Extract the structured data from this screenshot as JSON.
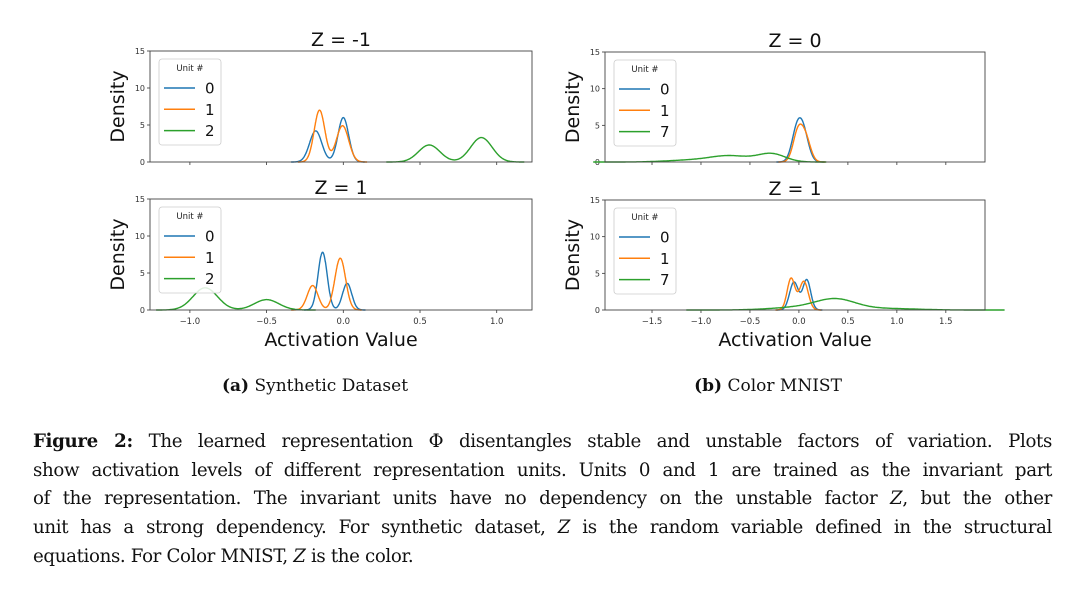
{
  "colors": {
    "unit_a": "#1f77b4",
    "unit_b": "#ff7f0e",
    "unit_c": "#2ca02c"
  },
  "chart_data": [
    {
      "type": "line",
      "panel": "a-top",
      "title": "Z = -1",
      "ylabel": "Density",
      "xlabel": "",
      "ylim": [
        0,
        15
      ],
      "xlim": [
        -1.26,
        1.23
      ],
      "yticks": [
        "0",
        "5",
        "10",
        "15"
      ],
      "xticks": [],
      "legend_title": "Unit #",
      "legend_placement": "upper-left",
      "series": [
        {
          "name": "0",
          "components": [
            [
              -0.18,
              4.2,
              0.04
            ],
            [
              0.0,
              6.0,
              0.035
            ]
          ]
        },
        {
          "name": "1",
          "components": [
            [
              -0.155,
              7.0,
              0.035
            ],
            [
              -0.005,
              4.9,
              0.04
            ]
          ]
        },
        {
          "name": "2",
          "components": [
            [
              0.56,
              2.3,
              0.07
            ],
            [
              0.9,
              3.3,
              0.07
            ]
          ]
        }
      ]
    },
    {
      "type": "line",
      "panel": "a-bottom",
      "title": "Z = 1",
      "ylabel": "Density",
      "xlabel": "Activation Value",
      "ylim": [
        0,
        15
      ],
      "xlim": [
        -1.26,
        1.23
      ],
      "yticks": [
        "0",
        "5",
        "10",
        "15"
      ],
      "xticks": [
        "−1.0",
        "−0.5",
        "0.0",
        "0.5",
        "1.0"
      ],
      "xtick_values": [
        -1.0,
        -0.5,
        0.0,
        0.5,
        1.0
      ],
      "legend_title": "Unit #",
      "legend_placement": "upper-left",
      "series": [
        {
          "name": "0",
          "components": [
            [
              -0.135,
              7.8,
              0.03
            ],
            [
              0.025,
              3.6,
              0.03
            ]
          ]
        },
        {
          "name": "1",
          "components": [
            [
              -0.2,
              3.3,
              0.035
            ],
            [
              -0.02,
              7.0,
              0.035
            ]
          ]
        },
        {
          "name": "2",
          "components": [
            [
              -0.9,
              3.0,
              0.08
            ],
            [
              -0.5,
              1.4,
              0.08
            ]
          ]
        }
      ]
    },
    {
      "type": "line",
      "panel": "b-top",
      "title": "Z = 0",
      "ylabel": "Density",
      "xlabel": "",
      "ylim": [
        0,
        15
      ],
      "xlim": [
        -1.98,
        1.9
      ],
      "yticks": [
        "0",
        "5",
        "10",
        "15"
      ],
      "xticks": [],
      "legend_title": "Unit #",
      "legend_placement": "upper-left",
      "series": [
        {
          "name": "0",
          "components": [
            [
              -0.03,
              3.2,
              0.05
            ],
            [
              0.04,
              4.3,
              0.055
            ]
          ]
        },
        {
          "name": "1",
          "components": [
            [
              -0.01,
              4.0,
              0.05
            ],
            [
              0.07,
              3.0,
              0.05
            ]
          ]
        },
        {
          "name": "7",
          "components": [
            [
              -0.28,
              1.1,
              0.14
            ],
            [
              -0.7,
              0.8,
              0.2
            ],
            [
              -1.1,
              0.25,
              0.25
            ]
          ]
        }
      ]
    },
    {
      "type": "line",
      "panel": "b-bottom",
      "title": "Z = 1",
      "ylabel": "Density",
      "xlabel": "Activation Value",
      "ylim": [
        0,
        15
      ],
      "xlim": [
        -1.98,
        1.9
      ],
      "yticks": [
        "0",
        "5",
        "10",
        "15"
      ],
      "xticks": [
        "−1.5",
        "−1.0",
        "−0.5",
        "0.0",
        "0.5",
        "1.0",
        "1.5"
      ],
      "xtick_values": [
        -1.5,
        -1.0,
        -0.5,
        0.0,
        0.5,
        1.0,
        1.5
      ],
      "legend_title": "Unit #",
      "legend_placement": "upper-left",
      "series": [
        {
          "name": "0",
          "components": [
            [
              -0.05,
              3.8,
              0.045
            ],
            [
              0.08,
              4.1,
              0.04
            ]
          ]
        },
        {
          "name": "1",
          "components": [
            [
              -0.08,
              4.3,
              0.04
            ],
            [
              0.05,
              3.9,
              0.045
            ]
          ]
        },
        {
          "name": "7",
          "components": [
            [
              0.38,
              1.3,
              0.2
            ],
            [
              0.05,
              0.4,
              0.3
            ],
            [
              0.9,
              0.2,
              0.3
            ]
          ]
        }
      ]
    }
  ],
  "subcaptions": {
    "a_label": "(a)",
    "a_text": "Synthetic Dataset",
    "b_label": "(b)",
    "b_text": "Color MNIST"
  },
  "caption": {
    "label": "Figure 2:",
    "l1": "The learned representation Φ disentangles stable and unstable factors of variation. Plots",
    "l2": "show activation levels of different representation units. Units 0 and 1 are trained as the invariant part",
    "l3a": "of the representation. The invariant units have no dependency on the unstable factor ",
    "z": "Z",
    "l3b": ", but the other",
    "l4a": "unit has a strong dependency. For synthetic dataset, ",
    "l4b": " is the random variable defined in the structural",
    "l5a": "equations. For Color MNIST, ",
    "l5b": " is the color."
  }
}
